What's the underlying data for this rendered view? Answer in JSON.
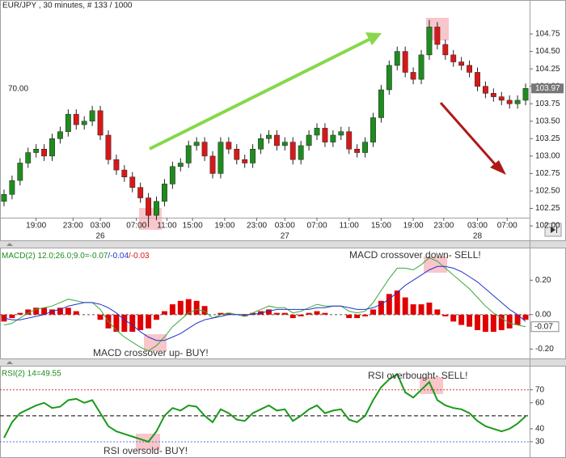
{
  "chart_data": [
    {
      "type": "candlestick",
      "title": "EUR/JPY , 30 minutes, # 133 / 1000",
      "left_label": "70.00",
      "up_color": "#1e8c1e",
      "down_color": "#d81818",
      "open": [
        102.35,
        102.45,
        102.65,
        102.9,
        103.05,
        103.1,
        103.0,
        103.25,
        103.35,
        103.6,
        103.45,
        103.5,
        103.65,
        103.3,
        102.95,
        102.8,
        102.7,
        102.55,
        102.4,
        102.15,
        102.35,
        102.6,
        102.85,
        102.9,
        103.15,
        103.2,
        103.0,
        102.75,
        103.2,
        103.1,
        102.95,
        102.9,
        103.1,
        103.25,
        103.3,
        103.15,
        103.2,
        102.95,
        103.15,
        103.3,
        103.4,
        103.2,
        103.3,
        103.35,
        103.1,
        103.05,
        103.2,
        103.55,
        103.95,
        104.3,
        104.5,
        104.2,
        104.1,
        104.45,
        104.85,
        104.6,
        104.45,
        104.35,
        104.3,
        104.2,
        104.0,
        103.9,
        103.85,
        103.8,
        103.75,
        103.8
      ],
      "high": [
        102.52,
        102.72,
        102.97,
        103.12,
        103.17,
        103.17,
        103.32,
        103.42,
        103.67,
        103.67,
        103.57,
        103.72,
        103.72,
        103.37,
        103.02,
        102.87,
        102.77,
        102.62,
        102.47,
        102.42,
        102.67,
        102.92,
        102.97,
        103.22,
        103.27,
        103.27,
        103.07,
        103.27,
        103.27,
        103.17,
        103.02,
        103.17,
        103.32,
        103.37,
        103.37,
        103.27,
        103.27,
        103.22,
        103.37,
        103.47,
        103.47,
        103.37,
        103.42,
        103.42,
        103.17,
        103.27,
        103.62,
        104.02,
        104.37,
        104.57,
        104.57,
        104.27,
        104.52,
        104.95,
        104.92,
        104.67,
        104.52,
        104.42,
        104.37,
        104.27,
        104.07,
        103.97,
        103.92,
        103.87,
        103.87,
        104.04
      ],
      "low": [
        102.28,
        102.38,
        102.58,
        102.83,
        102.98,
        102.93,
        102.93,
        103.18,
        103.28,
        103.38,
        103.38,
        103.43,
        103.23,
        102.88,
        102.73,
        102.63,
        102.48,
        102.33,
        101.98,
        102.08,
        102.28,
        102.53,
        102.78,
        102.83,
        103.08,
        102.93,
        102.68,
        102.68,
        103.03,
        102.88,
        102.83,
        102.83,
        103.03,
        103.18,
        103.08,
        103.08,
        102.88,
        102.88,
        103.08,
        103.23,
        103.13,
        103.13,
        103.23,
        103.03,
        102.98,
        102.98,
        103.13,
        103.48,
        103.88,
        104.23,
        104.13,
        104.03,
        104.03,
        104.38,
        104.53,
        104.38,
        104.28,
        104.23,
        104.13,
        103.93,
        103.83,
        103.78,
        103.73,
        103.68,
        103.68,
        103.73
      ],
      "close": [
        102.45,
        102.65,
        102.9,
        103.05,
        103.1,
        103.0,
        103.25,
        103.35,
        103.6,
        103.45,
        103.5,
        103.65,
        103.3,
        102.95,
        102.8,
        102.7,
        102.55,
        102.4,
        102.15,
        102.35,
        102.6,
        102.85,
        102.9,
        103.15,
        103.2,
        103.0,
        102.75,
        103.2,
        103.1,
        102.95,
        102.9,
        103.1,
        103.25,
        103.3,
        103.15,
        103.2,
        102.95,
        103.15,
        103.3,
        103.4,
        103.2,
        103.3,
        103.35,
        103.1,
        103.05,
        103.2,
        103.55,
        103.95,
        104.3,
        104.5,
        104.2,
        104.1,
        104.45,
        104.85,
        104.6,
        104.45,
        104.35,
        104.3,
        104.2,
        104.0,
        103.9,
        103.85,
        103.8,
        103.75,
        103.8,
        103.97
      ],
      "xlim": [
        -0.5,
        65.5
      ],
      "xticks": [
        {
          "value": 4,
          "label": "19:00"
        },
        {
          "value": 8.6,
          "label": "23:00"
        },
        {
          "value": 12,
          "label": "03:00"
        },
        {
          "value": 16.5,
          "label": "07:00"
        },
        {
          "value": 20.3,
          "label": "11:00"
        },
        {
          "value": 23.5,
          "label": "15:00"
        },
        {
          "value": 27.5,
          "label": "19:00"
        },
        {
          "value": 31.5,
          "label": "23:00"
        },
        {
          "value": 35,
          "label": "03:00"
        },
        {
          "value": 39,
          "label": "07:00"
        },
        {
          "value": 43,
          "label": "11:00"
        },
        {
          "value": 47,
          "label": "15:00"
        },
        {
          "value": 51,
          "label": "19:00"
        },
        {
          "value": 54.8,
          "label": "23:00"
        },
        {
          "value": 59,
          "label": "03:00"
        },
        {
          "value": 62.7,
          "label": "07:00"
        }
      ],
      "day_ticks": [
        {
          "value": 12,
          "label": "26"
        },
        {
          "value": 35,
          "label": "27"
        },
        {
          "value": 59,
          "label": "28"
        }
      ],
      "ylim": [
        101.85,
        105.075
      ],
      "yticks": [
        {
          "value": 102,
          "label": "102.00"
        },
        {
          "value": 102.25,
          "label": "102.25"
        },
        {
          "value": 102.5,
          "label": "102.50"
        },
        {
          "value": 102.75,
          "label": "102.75"
        },
        {
          "value": 103,
          "label": "103.00"
        },
        {
          "value": 103.25,
          "label": "103.25"
        },
        {
          "value": 103.5,
          "label": "103.50"
        },
        {
          "value": 103.75,
          "label": "103.75"
        },
        {
          "value": 104,
          "label": "104.00"
        },
        {
          "value": 104.25,
          "label": "104.25"
        },
        {
          "value": 104.5,
          "label": "104.50"
        },
        {
          "value": 104.75,
          "label": "104.75"
        }
      ]
    },
    {
      "type": "macd",
      "title_parts": [
        {
          "text": "MACD(2) 12.0;26.0;9.0=",
          "color": "#1e8c1e"
        },
        {
          "text": "-0.07",
          "color": "#1e8c1e"
        },
        {
          "text": "/-0.04",
          "color": "#2233cc"
        },
        {
          "text": "/-0.03",
          "color": "#d81818"
        }
      ],
      "annotations": [
        "MACD crossover down- SELL!",
        "MACD crossover up- BUY!"
      ],
      "series": [
        {
          "color": "#3aa83a",
          "values": [
            -0.06,
            -0.05,
            -0.02,
            0.01,
            0.03,
            0.04,
            0.05,
            0.07,
            0.09,
            0.08,
            0.07,
            0.07,
            0.03,
            -0.04,
            -0.09,
            -0.13,
            -0.16,
            -0.19,
            -0.21,
            -0.18,
            -0.13,
            -0.07,
            -0.03,
            0.01,
            0.03,
            0.02,
            -0.02,
            0.0,
            0.01,
            0.0,
            -0.01,
            0.01,
            0.03,
            0.05,
            0.04,
            0.04,
            0.01,
            0.02,
            0.04,
            0.06,
            0.05,
            0.05,
            0.05,
            0.02,
            0.01,
            0.02,
            0.07,
            0.14,
            0.21,
            0.27,
            0.27,
            0.26,
            0.29,
            0.33,
            0.31,
            0.27,
            0.23,
            0.19,
            0.15,
            0.1,
            0.05,
            0.01,
            -0.02,
            -0.05,
            -0.06,
            -0.07
          ]
        },
        {
          "color": "#2233cc",
          "values": [
            -0.02,
            -0.03,
            -0.03,
            -0.02,
            -0.01,
            0.0,
            0.02,
            0.03,
            0.05,
            0.06,
            0.07,
            0.07,
            0.06,
            0.04,
            0.01,
            -0.03,
            -0.06,
            -0.1,
            -0.13,
            -0.15,
            -0.15,
            -0.13,
            -0.11,
            -0.08,
            -0.05,
            -0.03,
            -0.02,
            -0.01,
            0.0,
            0.0,
            0.0,
            0.0,
            0.01,
            0.02,
            0.03,
            0.03,
            0.03,
            0.03,
            0.03,
            0.04,
            0.04,
            0.05,
            0.05,
            0.04,
            0.03,
            0.03,
            0.04,
            0.06,
            0.09,
            0.13,
            0.17,
            0.2,
            0.23,
            0.26,
            0.28,
            0.28,
            0.27,
            0.25,
            0.22,
            0.19,
            0.15,
            0.11,
            0.07,
            0.03,
            0.0,
            -0.04
          ]
        },
        {
          "color": "#e00000",
          "values": [
            -0.04,
            -0.02,
            0.01,
            0.03,
            0.04,
            0.04,
            0.03,
            0.04,
            0.04,
            0.02,
            0.0,
            0.0,
            -0.03,
            -0.08,
            -0.1,
            -0.1,
            -0.1,
            -0.09,
            -0.08,
            -0.03,
            0.02,
            0.06,
            0.08,
            0.09,
            0.08,
            0.05,
            0.0,
            0.01,
            0.01,
            0.0,
            -0.01,
            0.01,
            0.02,
            0.03,
            0.01,
            0.01,
            -0.02,
            -0.01,
            0.01,
            0.02,
            0.01,
            0.0,
            0.0,
            -0.02,
            -0.02,
            -0.01,
            0.03,
            0.08,
            0.12,
            0.14,
            0.1,
            0.06,
            0.06,
            0.07,
            0.03,
            -0.01,
            -0.04,
            -0.06,
            -0.07,
            -0.09,
            -0.1,
            -0.1,
            -0.09,
            -0.08,
            -0.06,
            -0.03
          ]
        }
      ],
      "ylim": [
        -0.25,
        0.38
      ],
      "yticks": [
        {
          "value": 0.2,
          "label": "0.20"
        },
        {
          "value": 0,
          "label": "0.00"
        },
        {
          "value": -0.2,
          "label": "-0.20"
        }
      ]
    },
    {
      "type": "line",
      "title": "RSI(2) 14=49.55",
      "annotations": [
        "RSI overbought- SELL!",
        "RSI oversold- BUY!"
      ],
      "series": [
        {
          "color": "#1a9a1a",
          "values": [
            33,
            45,
            52,
            55,
            58,
            60,
            56,
            57,
            62,
            63,
            60,
            62,
            52,
            42,
            38,
            36,
            34,
            32,
            30,
            38,
            50,
            56,
            54,
            58,
            57,
            50,
            45,
            55,
            52,
            47,
            46,
            52,
            55,
            58,
            54,
            55,
            46,
            50,
            55,
            58,
            52,
            54,
            55,
            47,
            45,
            50,
            62,
            72,
            78,
            82,
            68,
            64,
            70,
            76,
            62,
            58,
            56,
            55,
            52,
            46,
            42,
            40,
            38,
            40,
            44,
            49.55
          ]
        }
      ],
      "levels": [
        {
          "value": 70,
          "color": "#e03030",
          "dash": "2,2"
        },
        {
          "value": 50,
          "color": "#000000",
          "dash": "5,3"
        },
        {
          "value": 30,
          "color": "#4a7fd8",
          "dash": "2,2"
        }
      ],
      "ylim": [
        20,
        86
      ],
      "yticks": [
        70,
        60,
        40,
        30
      ]
    }
  ]
}
